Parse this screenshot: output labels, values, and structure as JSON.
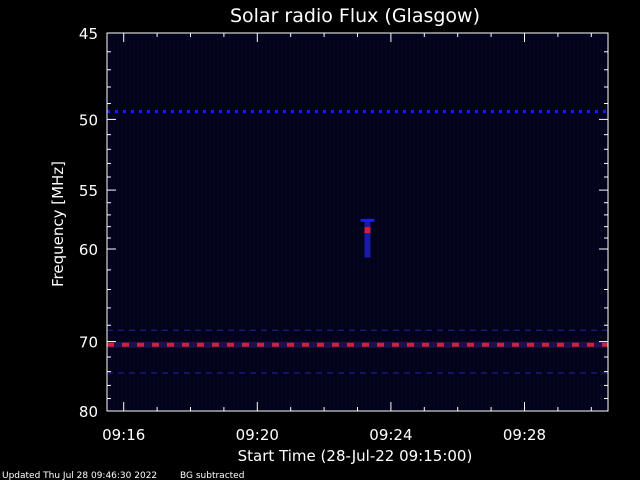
{
  "chart_data": {
    "type": "heatmap",
    "title": "Solar radio Flux (Glasgow)",
    "xlabel": "Start Time (28-Jul-22 09:15:00)",
    "ylabel": "Frequency [MHz]",
    "x_unit": "minutes after 09:15:00",
    "xlim": [
      0.5,
      15.5
    ],
    "ylim": [
      80,
      45
    ],
    "y_scale": "reciprocal",
    "x_ticks": [
      {
        "value": 1,
        "label": "09:16"
      },
      {
        "value": 5,
        "label": "09:20"
      },
      {
        "value": 9,
        "label": "09:24"
      },
      {
        "value": 13,
        "label": "09:28"
      }
    ],
    "y_ticks": [
      {
        "value": 45,
        "label": "45"
      },
      {
        "value": 50,
        "label": "50"
      },
      {
        "value": 55,
        "label": "55"
      },
      {
        "value": 60,
        "label": "60"
      },
      {
        "value": 70,
        "label": "70"
      },
      {
        "value": 80,
        "label": "80"
      }
    ],
    "y_minor_ticks": [
      46,
      47,
      48,
      49,
      51,
      52,
      53,
      54,
      56,
      57,
      58,
      59,
      62,
      64,
      66,
      68,
      72,
      74,
      76,
      78
    ],
    "grid": false,
    "colors": {
      "background": "#000000",
      "plot_background": "#02021a",
      "band_blue": "#1a1aff",
      "band_red": "#d0203a",
      "band_faint": "#1c1c8c"
    },
    "bands": [
      {
        "freq": 49.5,
        "x_start": 0.5,
        "x_end": 15.5,
        "intensity": "medium",
        "color": "band_blue"
      },
      {
        "freq": 68.6,
        "x_start": 0.5,
        "x_end": 15.5,
        "intensity": "low",
        "color": "band_faint"
      },
      {
        "freq": 70.4,
        "x_start": 0.5,
        "x_end": 15.5,
        "intensity": "high",
        "color": "band_red"
      },
      {
        "freq": 74.2,
        "x_start": 0.5,
        "x_end": 15.5,
        "intensity": "low",
        "color": "band_faint"
      }
    ],
    "burst": {
      "time": 8.3,
      "freq_start": 57.5,
      "freq_end": 60.8,
      "peak_freq": 58.3
    }
  },
  "footer": {
    "updated": "Updated Thu Jul 28 09:46:30 2022",
    "bg_note": "BG subtracted"
  }
}
